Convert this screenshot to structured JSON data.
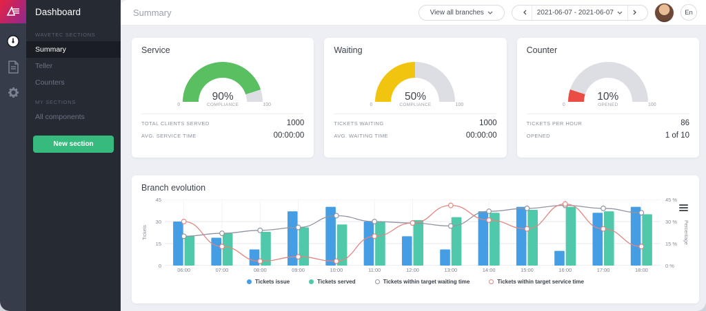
{
  "theme": {
    "gauge_track": "#dcdee3",
    "accent_green": "#36ba7d",
    "sidebar_bg": "#262a33",
    "rail_bg": "#363c4a"
  },
  "sidebar": {
    "title": "Dashboard",
    "sections": [
      {
        "header": "WAVETEC SECTIONS",
        "items": [
          {
            "label": "Summary",
            "active": true
          },
          {
            "label": "Teller"
          },
          {
            "label": "Counters"
          }
        ]
      },
      {
        "header": "MY SECTIONS",
        "items": [
          {
            "label": "All components"
          }
        ]
      }
    ],
    "new_section_label": "New section"
  },
  "topbar": {
    "page_title": "Summary",
    "branch_selector": {
      "value": "View all branches"
    },
    "date_range": {
      "value": "2021-06-07 - 2021-06-07"
    },
    "language": {
      "value": "En"
    }
  },
  "cards": [
    {
      "title": "Service",
      "gauge": {
        "value": 90,
        "label": "90%",
        "sublabel": "COMPLIANCE",
        "min": "0",
        "max": "100",
        "color": "#5abf60"
      },
      "stats": [
        {
          "label": "TOTAL CLIENTS SERVED",
          "value": "1000"
        },
        {
          "label": "AVG. SERVICE TIME",
          "value": "00:00:00"
        }
      ]
    },
    {
      "title": "Waiting",
      "gauge": {
        "value": 50,
        "label": "50%",
        "sublabel": "COMPLIANCE",
        "min": "0",
        "max": "100",
        "color": "#f1c40f"
      },
      "stats": [
        {
          "label": "TICKETS WAITING",
          "value": "1000"
        },
        {
          "label": "AVG. WAITING TIME",
          "value": "00:00:00"
        }
      ]
    },
    {
      "title": "Counter",
      "gauge": {
        "value": 10,
        "label": "10%",
        "sublabel": "OPENED",
        "min": "0",
        "max": "100",
        "color": "#ea4d44"
      },
      "stats": [
        {
          "label": "TICKETS PER HOUR",
          "value": "86"
        },
        {
          "label": "OPENED",
          "value": "1 of 10"
        }
      ]
    }
  ],
  "chart_data": {
    "type": "bar",
    "title": "Branch evolution",
    "categories": [
      "06:00",
      "07:00",
      "08:00",
      "09:00",
      "10:00",
      "11:00",
      "12:00",
      "13:00",
      "14:00",
      "15:00",
      "16:00",
      "17:00",
      "18:00"
    ],
    "y_left": {
      "label": "Tickets",
      "ticks_top_down": [
        "45",
        "30",
        "15",
        "0"
      ],
      "max": 45
    },
    "y_right": {
      "label": "Percentage",
      "ticks_top_down": [
        "45 %",
        "30 %",
        "15 %",
        "0 %"
      ],
      "max": 45
    },
    "grid": true,
    "legend_position": "bottom",
    "series": [
      {
        "name": "Tickets issue",
        "type": "bar",
        "color": "#459ee3",
        "values": [
          30,
          19,
          11,
          37,
          40,
          30,
          20,
          11,
          37,
          40,
          10,
          36,
          40
        ]
      },
      {
        "name": "Tickets served",
        "type": "bar",
        "color": "#4fc9a9",
        "values": [
          20,
          22,
          23,
          26,
          28,
          30,
          31,
          33,
          36,
          38,
          40,
          37,
          35
        ]
      },
      {
        "name": "Tickets within target waiting time",
        "type": "line",
        "color": "#9094a2",
        "values": [
          20,
          22,
          24,
          26,
          34,
          30,
          29,
          27,
          37,
          39,
          41,
          39,
          36
        ]
      },
      {
        "name": "Tickets within target service time",
        "type": "line",
        "color": "#e28581",
        "values": [
          30,
          13,
          3,
          6,
          3,
          20,
          29,
          41,
          31,
          25,
          42,
          25,
          13
        ]
      }
    ]
  }
}
